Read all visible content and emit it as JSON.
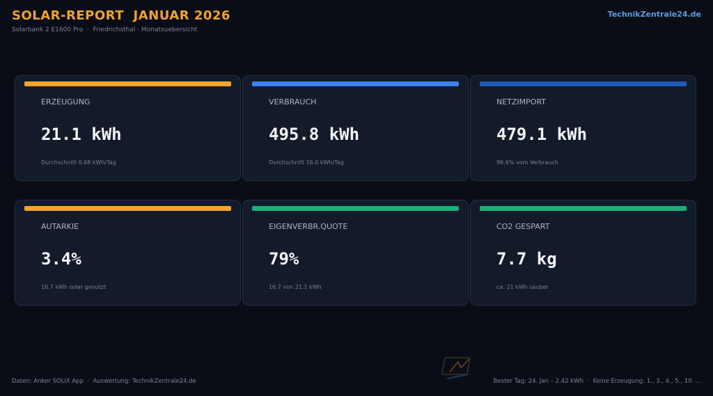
{
  "header": {
    "title": "SOLAR-REPORT  JANUAR 2026",
    "subtitle": "Solarbank 2 E1600 Pro  ·  Friedrichsthal · Monatsuebersicht",
    "brand": "TechnikZentrale24.de"
  },
  "cards": [
    {
      "label": "ERZEUGUNG",
      "value": "21.1 kWh",
      "note": "Durchschnitt 0.68 kWh/Tag",
      "accent": "#f5a52b"
    },
    {
      "label": "VERBRAUCH",
      "value": "495.8 kWh",
      "note": "Durchschnitt 16.0 kWh/Tag",
      "accent": "#3b82f0"
    },
    {
      "label": "NETZIMPORT",
      "value": "479.1 kWh",
      "note": "96.6% vom Verbrauch",
      "accent": "#1e5bb8"
    },
    {
      "label": "AUTARKIE",
      "value": "3.4%",
      "note": "16.7 kWh solar genutzt",
      "accent": "#f5a52b"
    },
    {
      "label": "EIGENVERBR.QUOTE",
      "value": "79%",
      "note": "16.7 von 21.1 kWh",
      "accent": "#18b07a"
    },
    {
      "label": "CO2 GESPART",
      "value": "7.7 kg",
      "note": "ca. 21 kWh sauber",
      "accent": "#18b07a"
    }
  ],
  "footer": {
    "left": "Daten: Anker SOLIX App  ·  Auswertung: TechnikZentrale24.de",
    "right": "Bester Tag: 24. Jan – 2.42 kWh  ·  Keine Erzeugung: 1., 3., 4., 5., 10. ..."
  }
}
